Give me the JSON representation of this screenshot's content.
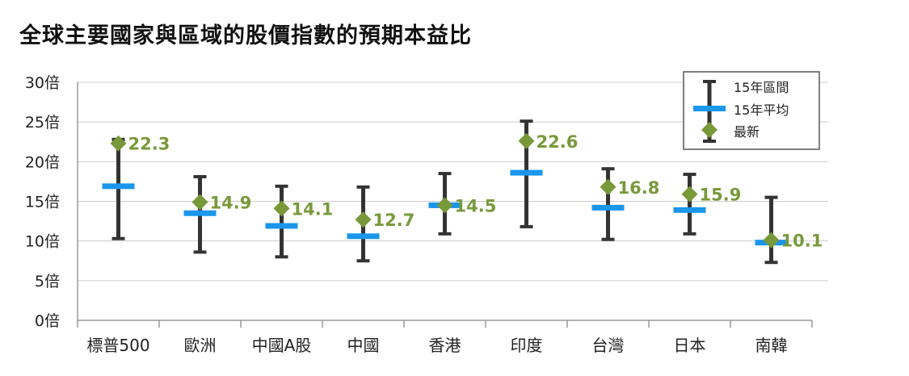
{
  "title": "全球主要國家與區域的股價指數的預期本益比",
  "colors": {
    "range": "#333333",
    "average": "#1a96ea",
    "latest": "#78993a",
    "grid": "#cccccc",
    "axis": "#999999"
  },
  "legend": {
    "items": [
      {
        "label": "15年區間",
        "icon": "range-bar-icon"
      },
      {
        "label": "15年平均",
        "icon": "average-dash-icon"
      },
      {
        "label": "最新",
        "icon": "latest-diamond-icon"
      }
    ],
    "placement": "top-right"
  },
  "chart_data": {
    "type": "range-marker",
    "title": "全球主要國家與區域的股價指數的預期本益比",
    "categories": [
      "標普500",
      "歐洲",
      "中國A股",
      "中國",
      "香港",
      "印度",
      "台灣",
      "日本",
      "南韓"
    ],
    "ylim": [
      0,
      30
    ],
    "yticks": [
      0,
      5,
      10,
      15,
      20,
      25,
      30
    ],
    "ytick_labels": [
      "0倍",
      "5倍",
      "10倍",
      "15倍",
      "20倍",
      "25倍",
      "30倍"
    ],
    "grid": "horizontal",
    "series": [
      {
        "name": "15年區間",
        "low": [
          10.3,
          8.6,
          8.0,
          7.5,
          10.9,
          11.8,
          10.2,
          10.9,
          7.3
        ],
        "high": [
          22.8,
          18.1,
          16.9,
          16.8,
          18.5,
          25.1,
          19.1,
          18.4,
          15.5
        ]
      },
      {
        "name": "15年平均",
        "values": [
          16.9,
          13.5,
          11.9,
          10.6,
          14.5,
          18.6,
          14.2,
          13.9,
          9.8
        ]
      },
      {
        "name": "最新",
        "values": [
          22.3,
          14.9,
          14.1,
          12.7,
          14.5,
          22.6,
          16.8,
          15.9,
          10.1
        ],
        "labels": [
          "22.3",
          "14.9",
          "14.1",
          "12.7",
          "14.5",
          "22.6",
          "16.8",
          "15.9",
          "10.1"
        ]
      }
    ]
  }
}
